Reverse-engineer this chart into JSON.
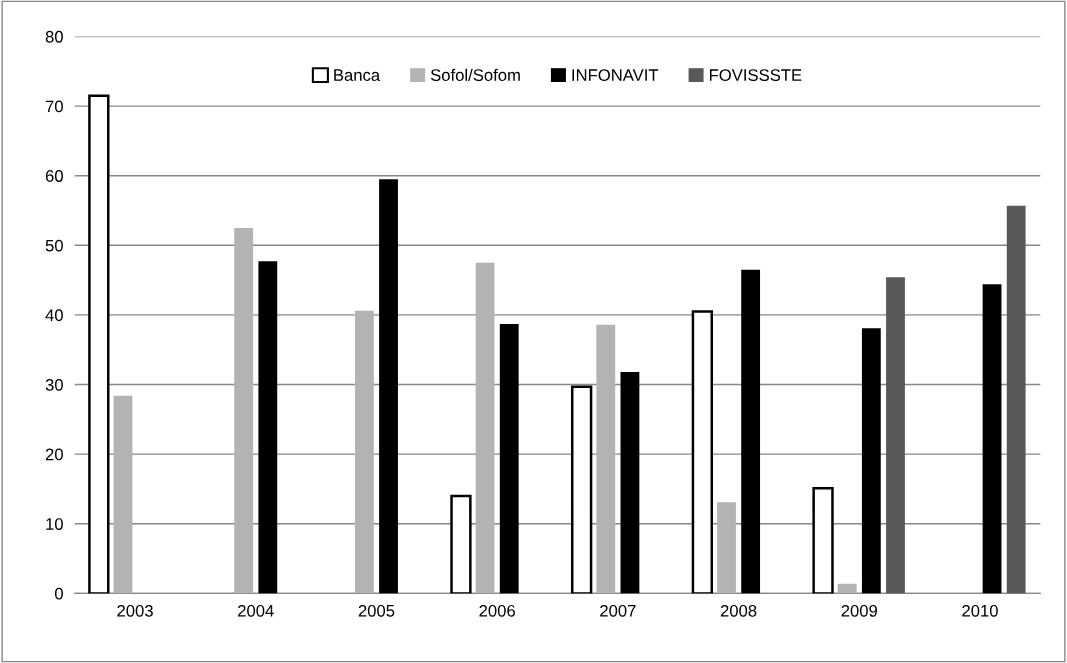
{
  "chart_data": {
    "type": "bar",
    "categories": [
      "2003",
      "2004",
      "2005",
      "2006",
      "2007",
      "2008",
      "2009",
      "2010"
    ],
    "series": [
      {
        "name": "Banca",
        "color": "#ffffff",
        "values": [
          71.5,
          null,
          null,
          14.0,
          29.7,
          40.5,
          15.1,
          null
        ]
      },
      {
        "name": "Sofol/Sofom",
        "color": "#b3b3b3",
        "values": [
          28.4,
          52.5,
          40.6,
          47.5,
          38.6,
          13.1,
          1.4,
          null
        ]
      },
      {
        "name": "INFONAVIT",
        "color": "#000000",
        "values": [
          null,
          47.7,
          59.5,
          38.7,
          31.8,
          46.5,
          38.1,
          44.4
        ]
      },
      {
        "name": "FOVISSSTE",
        "color": "#595959",
        "values": [
          null,
          null,
          null,
          null,
          null,
          null,
          45.4,
          55.7
        ]
      }
    ],
    "ylim": [
      0,
      80
    ],
    "yticks": [
      0,
      10,
      20,
      30,
      40,
      50,
      60,
      70,
      80
    ],
    "grid": "y",
    "legend": "top"
  }
}
